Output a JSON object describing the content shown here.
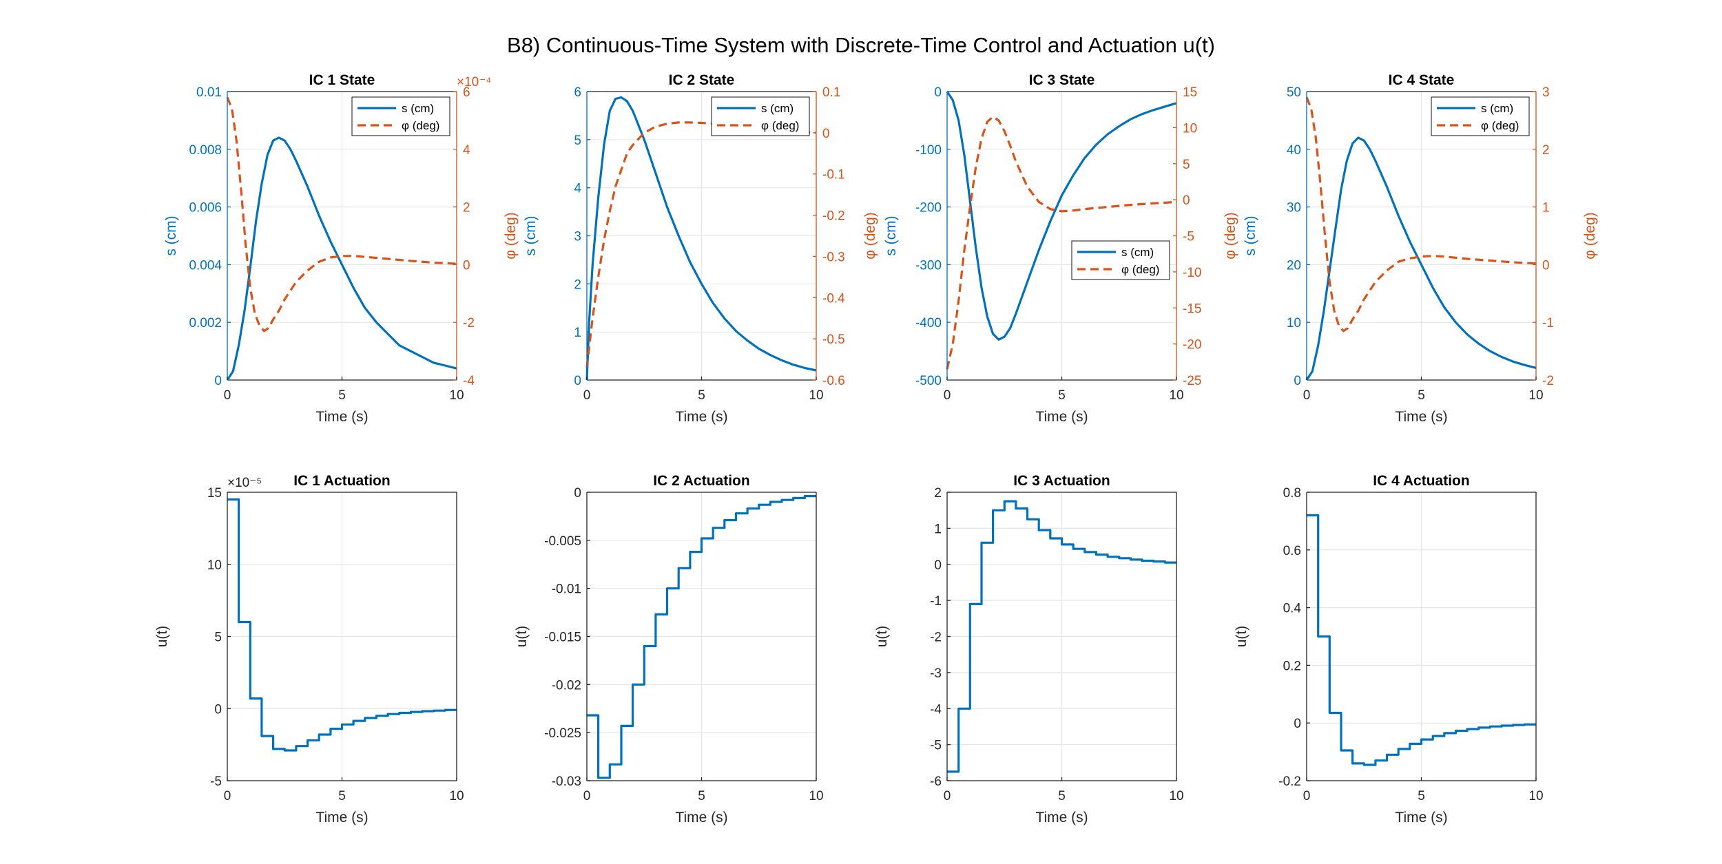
{
  "figure": {
    "title": "B8) Continuous-Time System with Discrete-Time Control and Actuation u(t)"
  },
  "colors": {
    "blue": "#0072BD",
    "orange": "#D95319",
    "axis": "#262626",
    "grid": "#e6e6e6"
  },
  "chart_data": [
    {
      "type": "line",
      "title": "IC 1 State",
      "xlabel": "Time (s)",
      "ylabel": "s (cm)",
      "ylabel_right": "φ (deg)",
      "xlim": [
        0,
        10
      ],
      "ylim": [
        0,
        0.01
      ],
      "ylim_right": [
        -4,
        6
      ],
      "xticks": [
        0,
        5,
        10
      ],
      "yticks": [
        0,
        0.002,
        0.004,
        0.006,
        0.008,
        0.01
      ],
      "yticks_right": [
        -4,
        -2,
        0,
        2,
        4,
        6
      ],
      "exponent_right": "×10⁻⁴",
      "grid": true,
      "legend": "top-right",
      "series": [
        {
          "name": "s (cm)",
          "axis": "left",
          "style": "solid",
          "x": [
            0,
            0.25,
            0.5,
            0.75,
            1,
            1.25,
            1.5,
            1.75,
            2,
            2.25,
            2.5,
            2.75,
            3,
            3.5,
            4,
            4.5,
            5,
            5.5,
            6,
            6.5,
            7,
            7.5,
            8,
            8.5,
            9,
            9.5,
            10
          ],
          "y": [
            0,
            0.0003,
            0.0012,
            0.0024,
            0.0039,
            0.0055,
            0.0068,
            0.0078,
            0.0083,
            0.0084,
            0.0083,
            0.008,
            0.0076,
            0.0067,
            0.0057,
            0.0048,
            0.004,
            0.0032,
            0.0025,
            0.002,
            0.0016,
            0.0012,
            0.001,
            0.0008,
            0.0006,
            0.0005,
            0.0004
          ]
        },
        {
          "name": "φ (deg)",
          "axis": "right",
          "style": "dashed",
          "x": [
            0,
            0.2,
            0.4,
            0.6,
            0.8,
            1,
            1.2,
            1.4,
            1.6,
            1.8,
            2,
            2.25,
            2.5,
            3,
            3.5,
            4,
            4.5,
            5,
            5.5,
            6,
            7,
            8,
            9,
            10
          ],
          "y": [
            5.8,
            5.4,
            4.3,
            2.6,
            0.7,
            -0.8,
            -1.7,
            -2.1,
            -2.3,
            -2.2,
            -1.9,
            -1.6,
            -1.2,
            -0.6,
            -0.2,
            0.1,
            0.25,
            0.3,
            0.3,
            0.27,
            0.2,
            0.13,
            0.07,
            0.03
          ]
        }
      ]
    },
    {
      "type": "line",
      "title": "IC 2 State",
      "xlabel": "Time (s)",
      "ylabel": "s (cm)",
      "ylabel_right": "φ (deg)",
      "xlim": [
        0,
        10
      ],
      "ylim": [
        0,
        6
      ],
      "ylim_right": [
        -0.6,
        0.1
      ],
      "xticks": [
        0,
        5,
        10
      ],
      "yticks": [
        0,
        1,
        2,
        3,
        4,
        5,
        6
      ],
      "yticks_right": [
        -0.6,
        -0.5,
        -0.4,
        -0.3,
        -0.2,
        -0.1,
        0,
        0.1
      ],
      "exponent_right": "",
      "grid": true,
      "legend": "top-right",
      "series": [
        {
          "name": "s (cm)",
          "axis": "left",
          "style": "solid",
          "x": [
            0,
            0.1,
            0.25,
            0.5,
            0.75,
            1,
            1.25,
            1.5,
            1.75,
            2,
            2.5,
            3,
            3.5,
            4,
            4.5,
            5,
            5.5,
            6,
            6.5,
            7,
            7.5,
            8,
            8.5,
            9,
            9.5,
            10
          ],
          "y": [
            0,
            1.2,
            2.4,
            3.8,
            4.9,
            5.6,
            5.85,
            5.88,
            5.8,
            5.6,
            5.0,
            4.3,
            3.6,
            3.0,
            2.45,
            2.0,
            1.6,
            1.28,
            1.02,
            0.82,
            0.65,
            0.52,
            0.41,
            0.32,
            0.25,
            0.2
          ]
        },
        {
          "name": "φ (deg)",
          "axis": "right",
          "style": "dashed",
          "x": [
            0,
            0.25,
            0.5,
            0.75,
            1,
            1.25,
            1.5,
            1.75,
            2,
            2.5,
            3,
            3.5,
            4,
            4.5,
            5,
            6,
            7,
            8,
            9,
            10
          ],
          "y": [
            -0.57,
            -0.45,
            -0.35,
            -0.26,
            -0.19,
            -0.13,
            -0.09,
            -0.05,
            -0.03,
            0.0,
            0.015,
            0.022,
            0.025,
            0.025,
            0.024,
            0.02,
            0.015,
            0.01,
            0.005,
            0.0
          ]
        }
      ]
    },
    {
      "type": "line",
      "title": "IC 3 State",
      "xlabel": "Time (s)",
      "ylabel": "s (cm)",
      "ylabel_right": "φ (deg)",
      "xlim": [
        0,
        10
      ],
      "ylim": [
        -500,
        0
      ],
      "ylim_right": [
        -25,
        15
      ],
      "xticks": [
        0,
        5,
        10
      ],
      "yticks": [
        -500,
        -400,
        -300,
        -200,
        -100,
        0
      ],
      "yticks_right": [
        -25,
        -20,
        -15,
        -10,
        -5,
        0,
        5,
        10,
        15
      ],
      "exponent_right": "",
      "grid": true,
      "legend": "middle-right",
      "series": [
        {
          "name": "s (cm)",
          "axis": "left",
          "style": "solid",
          "x": [
            0,
            0.25,
            0.5,
            0.75,
            1,
            1.25,
            1.5,
            1.75,
            2,
            2.25,
            2.5,
            2.75,
            3,
            3.5,
            4,
            4.5,
            5,
            5.5,
            6,
            6.5,
            7,
            7.5,
            8,
            8.5,
            9,
            9.5,
            10
          ],
          "y": [
            0,
            -15,
            -50,
            -110,
            -190,
            -270,
            -340,
            -390,
            -420,
            -430,
            -425,
            -410,
            -385,
            -330,
            -275,
            -225,
            -180,
            -145,
            -115,
            -92,
            -74,
            -60,
            -48,
            -39,
            -32,
            -26,
            -20
          ]
        },
        {
          "name": "φ (deg)",
          "axis": "right",
          "style": "dashed",
          "x": [
            0,
            0.25,
            0.5,
            0.75,
            1,
            1.25,
            1.5,
            1.75,
            2,
            2.25,
            2.5,
            2.75,
            3,
            3.5,
            4,
            4.5,
            5,
            5.5,
            6,
            7,
            8,
            9,
            10
          ],
          "y": [
            -23.5,
            -20,
            -14,
            -7,
            -1,
            4.5,
            8.5,
            10.8,
            11.5,
            11,
            9.5,
            7.5,
            5.3,
            1.8,
            -0.3,
            -1.3,
            -1.6,
            -1.5,
            -1.3,
            -1.0,
            -0.7,
            -0.5,
            -0.3
          ]
        }
      ]
    },
    {
      "type": "line",
      "title": "IC 4 State",
      "xlabel": "Time (s)",
      "ylabel": "s (cm)",
      "ylabel_right": "φ (deg)",
      "xlim": [
        0,
        10
      ],
      "ylim": [
        0,
        50
      ],
      "ylim_right": [
        -2,
        3
      ],
      "xticks": [
        0,
        5,
        10
      ],
      "yticks": [
        0,
        10,
        20,
        30,
        40,
        50
      ],
      "yticks_right": [
        -2,
        -1,
        0,
        1,
        2,
        3
      ],
      "exponent_right": "",
      "grid": true,
      "legend": "top-right",
      "series": [
        {
          "name": "s (cm)",
          "axis": "left",
          "style": "solid",
          "x": [
            0,
            0.25,
            0.5,
            0.75,
            1,
            1.25,
            1.5,
            1.75,
            2,
            2.25,
            2.5,
            2.75,
            3,
            3.5,
            4,
            4.5,
            5,
            5.5,
            6,
            6.5,
            7,
            7.5,
            8,
            8.5,
            9,
            9.5,
            10
          ],
          "y": [
            0,
            1.5,
            6,
            12,
            19,
            26,
            33,
            38,
            41,
            42,
            41.5,
            40,
            38,
            33.5,
            28.5,
            24,
            20,
            16,
            12.6,
            10,
            7.9,
            6.3,
            5,
            4,
            3.2,
            2.6,
            2.1
          ]
        },
        {
          "name": "φ (deg)",
          "axis": "right",
          "style": "dashed",
          "x": [
            0,
            0.2,
            0.4,
            0.6,
            0.8,
            1,
            1.2,
            1.4,
            1.6,
            1.8,
            2,
            2.25,
            2.5,
            3,
            3.5,
            4,
            4.5,
            5,
            5.5,
            6,
            7,
            8,
            9,
            10
          ],
          "y": [
            2.9,
            2.7,
            2.2,
            1.4,
            0.5,
            -0.3,
            -0.8,
            -1.05,
            -1.15,
            -1.1,
            -0.95,
            -0.8,
            -0.6,
            -0.3,
            -0.1,
            0.05,
            0.11,
            0.14,
            0.15,
            0.14,
            0.1,
            0.07,
            0.04,
            0.02
          ]
        }
      ]
    },
    {
      "type": "line",
      "title": "IC 1 Actuation",
      "xlabel": "Time (s)",
      "ylabel": "u(t)",
      "xlim": [
        0,
        10
      ],
      "ylim": [
        -5,
        15
      ],
      "xticks": [
        0,
        5,
        10
      ],
      "yticks": [
        -5,
        0,
        5,
        10,
        15
      ],
      "exponent": "×10⁻⁵",
      "grid": true,
      "step": true,
      "series": [
        {
          "name": "u(t)",
          "style": "solid",
          "dt": 0.5,
          "values": [
            14.5,
            6.0,
            0.7,
            -1.9,
            -2.8,
            -2.9,
            -2.6,
            -2.2,
            -1.8,
            -1.4,
            -1.1,
            -0.85,
            -0.65,
            -0.5,
            -0.38,
            -0.3,
            -0.23,
            -0.18,
            -0.14,
            -0.1
          ]
        }
      ]
    },
    {
      "type": "line",
      "title": "IC 2 Actuation",
      "xlabel": "Time (s)",
      "ylabel": "u(t)",
      "xlim": [
        0,
        10
      ],
      "ylim": [
        -0.03,
        0
      ],
      "xticks": [
        0,
        5,
        10
      ],
      "yticks": [
        -0.03,
        -0.025,
        -0.02,
        -0.015,
        -0.01,
        -0.005,
        0
      ],
      "exponent": "",
      "grid": true,
      "step": true,
      "series": [
        {
          "name": "u(t)",
          "style": "solid",
          "dt": 0.5,
          "values": [
            -0.0232,
            -0.0297,
            -0.0283,
            -0.0243,
            -0.02,
            -0.016,
            -0.0127,
            -0.01,
            -0.0079,
            -0.0062,
            -0.0048,
            -0.0037,
            -0.0029,
            -0.0022,
            -0.0017,
            -0.0013,
            -0.001,
            -0.0008,
            -0.0006,
            -0.0004
          ]
        }
      ]
    },
    {
      "type": "line",
      "title": "IC 3 Actuation",
      "xlabel": "Time (s)",
      "ylabel": "u(t)",
      "xlim": [
        0,
        10
      ],
      "ylim": [
        -6,
        2
      ],
      "xticks": [
        0,
        5,
        10
      ],
      "yticks": [
        -6,
        -5,
        -4,
        -3,
        -2,
        -1,
        0,
        1,
        2
      ],
      "exponent": "",
      "grid": true,
      "step": true,
      "series": [
        {
          "name": "u(t)",
          "style": "solid",
          "dt": 0.5,
          "values": [
            -5.75,
            -4.0,
            -1.1,
            0.6,
            1.5,
            1.75,
            1.55,
            1.25,
            0.95,
            0.72,
            0.55,
            0.43,
            0.34,
            0.27,
            0.21,
            0.17,
            0.13,
            0.1,
            0.08,
            0.05
          ]
        }
      ]
    },
    {
      "type": "line",
      "title": "IC 4 Actuation",
      "xlabel": "Time (s)",
      "ylabel": "u(t)",
      "xlim": [
        0,
        10
      ],
      "ylim": [
        -0.2,
        0.8
      ],
      "xticks": [
        0,
        5,
        10
      ],
      "yticks": [
        -0.2,
        0,
        0.2,
        0.4,
        0.6,
        0.8
      ],
      "exponent": "",
      "grid": true,
      "step": true,
      "series": [
        {
          "name": "u(t)",
          "style": "solid",
          "dt": 0.5,
          "values": [
            0.72,
            0.3,
            0.035,
            -0.095,
            -0.14,
            -0.145,
            -0.13,
            -0.11,
            -0.09,
            -0.072,
            -0.057,
            -0.045,
            -0.035,
            -0.027,
            -0.021,
            -0.016,
            -0.012,
            -0.009,
            -0.007,
            -0.005
          ]
        }
      ]
    }
  ]
}
